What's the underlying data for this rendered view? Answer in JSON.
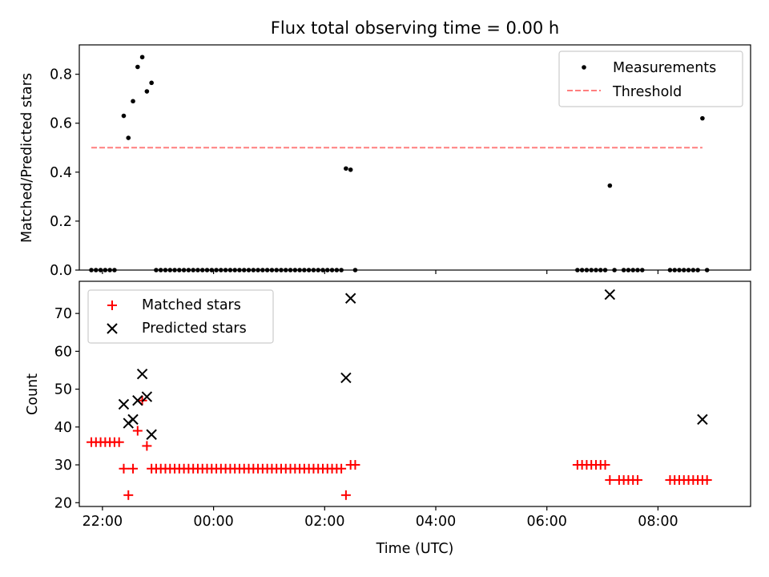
{
  "chart_data": [
    {
      "type": "scatter",
      "title": "Flux total observing time = 0.00 h",
      "ylabel": "Matched/Predicted stars",
      "xlim": [
        "21:35",
        "09:40"
      ],
      "ylim": [
        0,
        0.92
      ],
      "yticks": [
        "0.0",
        "0.2",
        "0.4",
        "0.6",
        "0.8"
      ],
      "xticks": [
        "22:00",
        "00:00",
        "02:00",
        "04:00",
        "06:00",
        "08:00"
      ],
      "legend_position": "top-right",
      "series": [
        {
          "name": "Measurements",
          "color": "#000000",
          "marker": "dot",
          "points": [
            [
              "21:48",
              0
            ],
            [
              "21:53",
              0
            ],
            [
              "21:58",
              0
            ],
            [
              "22:03",
              0
            ],
            [
              "22:08",
              0
            ],
            [
              "22:13",
              0
            ],
            [
              "22:23",
              0.63
            ],
            [
              "22:28",
              0.54
            ],
            [
              "22:33",
              0.69
            ],
            [
              "22:38",
              0.83
            ],
            [
              "22:43",
              0.87
            ],
            [
              "22:48",
              0.73
            ],
            [
              "22:53",
              0.765
            ],
            [
              "22:58",
              0
            ],
            [
              "23:03",
              0
            ],
            [
              "23:08",
              0
            ],
            [
              "23:13",
              0
            ],
            [
              "23:18",
              0
            ],
            [
              "23:23",
              0
            ],
            [
              "23:28",
              0
            ],
            [
              "23:33",
              0
            ],
            [
              "23:38",
              0
            ],
            [
              "23:43",
              0
            ],
            [
              "23:48",
              0
            ],
            [
              "23:53",
              0
            ],
            [
              "23:58",
              0
            ],
            [
              "00:03",
              0
            ],
            [
              "00:08",
              0
            ],
            [
              "00:13",
              0
            ],
            [
              "00:18",
              0
            ],
            [
              "00:23",
              0
            ],
            [
              "00:28",
              0
            ],
            [
              "00:33",
              0
            ],
            [
              "00:38",
              0
            ],
            [
              "00:43",
              0
            ],
            [
              "00:48",
              0
            ],
            [
              "00:53",
              0
            ],
            [
              "00:58",
              0
            ],
            [
              "01:03",
              0
            ],
            [
              "01:08",
              0
            ],
            [
              "01:13",
              0
            ],
            [
              "01:18",
              0
            ],
            [
              "01:23",
              0
            ],
            [
              "01:28",
              0
            ],
            [
              "01:33",
              0
            ],
            [
              "01:38",
              0
            ],
            [
              "01:43",
              0
            ],
            [
              "01:48",
              0
            ],
            [
              "01:53",
              0
            ],
            [
              "01:58",
              0
            ],
            [
              "02:03",
              0
            ],
            [
              "02:08",
              0
            ],
            [
              "02:13",
              0
            ],
            [
              "02:18",
              0
            ],
            [
              "02:23",
              0.415
            ],
            [
              "02:28",
              0.41
            ],
            [
              "02:33",
              0
            ],
            [
              "06:33",
              0
            ],
            [
              "06:38",
              0
            ],
            [
              "06:43",
              0
            ],
            [
              "06:48",
              0
            ],
            [
              "06:53",
              0
            ],
            [
              "06:58",
              0
            ],
            [
              "07:03",
              0
            ],
            [
              "07:08",
              0.345
            ],
            [
              "07:13",
              0
            ],
            [
              "07:23",
              0
            ],
            [
              "07:28",
              0
            ],
            [
              "07:33",
              0
            ],
            [
              "07:38",
              0
            ],
            [
              "07:43",
              0
            ],
            [
              "08:13",
              0
            ],
            [
              "08:18",
              0
            ],
            [
              "08:23",
              0
            ],
            [
              "08:28",
              0
            ],
            [
              "08:33",
              0
            ],
            [
              "08:38",
              0
            ],
            [
              "08:43",
              0
            ],
            [
              "08:48",
              0.62
            ],
            [
              "08:53",
              0
            ]
          ]
        },
        {
          "name": "Threshold",
          "color": "#ff7f7f",
          "line": "dashed",
          "x": [
            "21:48",
            "08:48"
          ],
          "y": [
            0.5,
            0.5
          ]
        }
      ]
    },
    {
      "type": "scatter",
      "xlabel": "Time (UTC)",
      "ylabel": "Count",
      "xlim": [
        "21:35",
        "09:40"
      ],
      "ylim": [
        19,
        78.5
      ],
      "yticks": [
        "20",
        "30",
        "40",
        "50",
        "60",
        "70"
      ],
      "xticks": [
        "22:00",
        "00:00",
        "02:00",
        "04:00",
        "06:00",
        "08:00"
      ],
      "legend_position": "top-left",
      "series": [
        {
          "name": "Matched stars",
          "color": "#ff0000",
          "marker": "plus",
          "points": [
            [
              "21:48",
              36
            ],
            [
              "21:53",
              36
            ],
            [
              "21:58",
              36
            ],
            [
              "22:03",
              36
            ],
            [
              "22:08",
              36
            ],
            [
              "22:13",
              36
            ],
            [
              "22:18",
              36
            ],
            [
              "22:23",
              29
            ],
            [
              "22:28",
              22
            ],
            [
              "22:33",
              29
            ],
            [
              "22:38",
              39
            ],
            [
              "22:43",
              47
            ],
            [
              "22:48",
              35
            ],
            [
              "22:53",
              29
            ],
            [
              "22:58",
              29
            ],
            [
              "23:03",
              29
            ],
            [
              "23:08",
              29
            ],
            [
              "23:13",
              29
            ],
            [
              "23:18",
              29
            ],
            [
              "23:23",
              29
            ],
            [
              "23:28",
              29
            ],
            [
              "23:33",
              29
            ],
            [
              "23:38",
              29
            ],
            [
              "23:43",
              29
            ],
            [
              "23:48",
              29
            ],
            [
              "23:53",
              29
            ],
            [
              "23:58",
              29
            ],
            [
              "00:03",
              29
            ],
            [
              "00:08",
              29
            ],
            [
              "00:13",
              29
            ],
            [
              "00:18",
              29
            ],
            [
              "00:23",
              29
            ],
            [
              "00:28",
              29
            ],
            [
              "00:33",
              29
            ],
            [
              "00:38",
              29
            ],
            [
              "00:43",
              29
            ],
            [
              "00:48",
              29
            ],
            [
              "00:53",
              29
            ],
            [
              "00:58",
              29
            ],
            [
              "01:03",
              29
            ],
            [
              "01:08",
              29
            ],
            [
              "01:13",
              29
            ],
            [
              "01:18",
              29
            ],
            [
              "01:23",
              29
            ],
            [
              "01:28",
              29
            ],
            [
              "01:33",
              29
            ],
            [
              "01:38",
              29
            ],
            [
              "01:43",
              29
            ],
            [
              "01:48",
              29
            ],
            [
              "01:53",
              29
            ],
            [
              "01:58",
              29
            ],
            [
              "02:03",
              29
            ],
            [
              "02:08",
              29
            ],
            [
              "02:13",
              29
            ],
            [
              "02:18",
              29
            ],
            [
              "02:23",
              22
            ],
            [
              "02:28",
              30
            ],
            [
              "02:33",
              30
            ],
            [
              "06:33",
              30
            ],
            [
              "06:38",
              30
            ],
            [
              "06:43",
              30
            ],
            [
              "06:48",
              30
            ],
            [
              "06:53",
              30
            ],
            [
              "06:58",
              30
            ],
            [
              "07:03",
              30
            ],
            [
              "07:08",
              26
            ],
            [
              "07:18",
              26
            ],
            [
              "07:23",
              26
            ],
            [
              "07:28",
              26
            ],
            [
              "07:33",
              26
            ],
            [
              "07:38",
              26
            ],
            [
              "08:13",
              26
            ],
            [
              "08:18",
              26
            ],
            [
              "08:23",
              26
            ],
            [
              "08:28",
              26
            ],
            [
              "08:33",
              26
            ],
            [
              "08:38",
              26
            ],
            [
              "08:43",
              26
            ],
            [
              "08:48",
              26
            ],
            [
              "08:53",
              26
            ]
          ]
        },
        {
          "name": "Predicted stars",
          "color": "#000000",
          "marker": "x",
          "points": [
            [
              "22:23",
              46
            ],
            [
              "22:28",
              41
            ],
            [
              "22:33",
              42
            ],
            [
              "22:38",
              47
            ],
            [
              "22:43",
              54
            ],
            [
              "22:48",
              48
            ],
            [
              "22:53",
              38
            ],
            [
              "02:23",
              53
            ],
            [
              "02:28",
              74
            ],
            [
              "07:08",
              75
            ],
            [
              "08:48",
              42
            ]
          ]
        }
      ]
    }
  ]
}
